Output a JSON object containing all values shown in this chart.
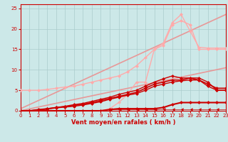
{
  "background_color": "#cce8e8",
  "grid_color": "#aacccc",
  "xlabel": "Vent moyen/en rafales ( km/h )",
  "xlim": [
    0,
    23
  ],
  "ylim": [
    0,
    26
  ],
  "xticks": [
    0,
    1,
    2,
    3,
    4,
    5,
    6,
    7,
    8,
    9,
    10,
    11,
    12,
    13,
    14,
    15,
    16,
    17,
    18,
    19,
    20,
    21,
    22,
    23
  ],
  "yticks": [
    0,
    5,
    10,
    15,
    20,
    25
  ],
  "lines": [
    {
      "x": [
        0,
        23
      ],
      "y": [
        0,
        10.5
      ],
      "color": "#e89898",
      "lw": 1.2,
      "marker": null,
      "ms": 0,
      "zorder": 2
    },
    {
      "x": [
        0,
        23
      ],
      "y": [
        0.5,
        23.5
      ],
      "color": "#e89898",
      "lw": 1.2,
      "marker": null,
      "ms": 0,
      "zorder": 2
    },
    {
      "x": [
        0,
        1,
        2,
        3,
        4,
        5,
        6,
        7,
        8,
        9,
        10,
        11,
        12,
        13,
        14,
        15,
        16,
        17,
        18,
        19,
        20,
        21,
        22,
        23
      ],
      "y": [
        5,
        5,
        5,
        5.2,
        5.5,
        5.8,
        6.0,
        6.5,
        7.0,
        7.5,
        8.0,
        8.5,
        9.5,
        11,
        13,
        15,
        16.5,
        21.5,
        23.5,
        19.5,
        15.5,
        15.3,
        15.3,
        15.3
      ],
      "color": "#ffaaaa",
      "lw": 1.0,
      "marker": "D",
      "ms": 2,
      "zorder": 3
    },
    {
      "x": [
        0,
        1,
        2,
        3,
        4,
        5,
        6,
        7,
        8,
        9,
        10,
        11,
        12,
        13,
        14,
        15,
        16,
        17,
        18,
        19,
        20,
        21,
        22,
        23
      ],
      "y": [
        0,
        0,
        0,
        0,
        0,
        0,
        0,
        0,
        0,
        0,
        0.3,
        0.5,
        0.5,
        0.5,
        0.5,
        0.5,
        0.8,
        1.5,
        2,
        2,
        2,
        2,
        2,
        2
      ],
      "color": "#cc0000",
      "lw": 1.5,
      "marker": "D",
      "ms": 2,
      "zorder": 5
    },
    {
      "x": [
        0,
        1,
        2,
        3,
        4,
        5,
        6,
        7,
        8,
        9,
        10,
        11,
        12,
        13,
        14,
        15,
        16,
        17,
        18,
        19,
        20,
        21,
        22,
        23
      ],
      "y": [
        0,
        0,
        0.3,
        0.5,
        0.8,
        1.0,
        1.3,
        1.6,
        2.0,
        2.5,
        3.0,
        3.5,
        4.0,
        4.5,
        5.5,
        6.5,
        7.0,
        7.5,
        7.5,
        8.0,
        7.5,
        6.5,
        5.5,
        5.5
      ],
      "color": "#cc0000",
      "lw": 1.2,
      "marker": "D",
      "ms": 2,
      "zorder": 5
    },
    {
      "x": [
        0,
        1,
        2,
        3,
        4,
        5,
        6,
        7,
        8,
        9,
        10,
        11,
        12,
        13,
        14,
        15,
        16,
        17,
        18,
        19,
        20,
        21,
        22,
        23
      ],
      "y": [
        0,
        0,
        0.2,
        0.4,
        0.7,
        0.9,
        1.1,
        1.4,
        1.8,
        2.2,
        2.8,
        3.3,
        3.8,
        4.2,
        5.0,
        6.0,
        6.5,
        7.0,
        7.3,
        7.5,
        7.5,
        6.0,
        5.0,
        5.0
      ],
      "color": "#cc0000",
      "lw": 1.0,
      "marker": "D",
      "ms": 2,
      "zorder": 4
    },
    {
      "x": [
        0,
        1,
        2,
        3,
        4,
        5,
        6,
        7,
        8,
        9,
        10,
        11,
        12,
        13,
        14,
        15,
        16,
        17,
        18,
        19,
        20,
        21,
        22,
        23
      ],
      "y": [
        0,
        0,
        0.2,
        0.5,
        0.8,
        1.1,
        1.5,
        1.8,
        2.3,
        2.8,
        3.3,
        4.0,
        4.5,
        5.0,
        6.0,
        7.0,
        7.8,
        8.5,
        8.0,
        8.0,
        8.0,
        7.0,
        5.0,
        5.0
      ],
      "color": "#cc0000",
      "lw": 1.0,
      "marker": "D",
      "ms": 2,
      "zorder": 4
    },
    {
      "x": [
        9,
        10,
        11,
        12,
        13,
        14,
        15,
        16,
        17,
        18,
        19,
        20,
        21,
        22,
        23
      ],
      "y": [
        0,
        0.5,
        2,
        4,
        7,
        7,
        15,
        16,
        21,
        22,
        21,
        15,
        15,
        15,
        15
      ],
      "color": "#ffaaaa",
      "lw": 1.0,
      "marker": "D",
      "ms": 2,
      "zorder": 3
    },
    {
      "x": [
        10,
        11,
        12,
        13,
        14,
        15,
        16,
        17,
        18,
        19,
        20,
        21,
        22,
        23
      ],
      "y": [
        0.3,
        0.3,
        0.3,
        0.3,
        0.3,
        0.3,
        0.3,
        0.3,
        0.3,
        0.3,
        0.3,
        0.3,
        0.3,
        0.3
      ],
      "color": "#cc0000",
      "lw": 0.5,
      "marker": 4,
      "ms": 3,
      "zorder": 6
    }
  ]
}
